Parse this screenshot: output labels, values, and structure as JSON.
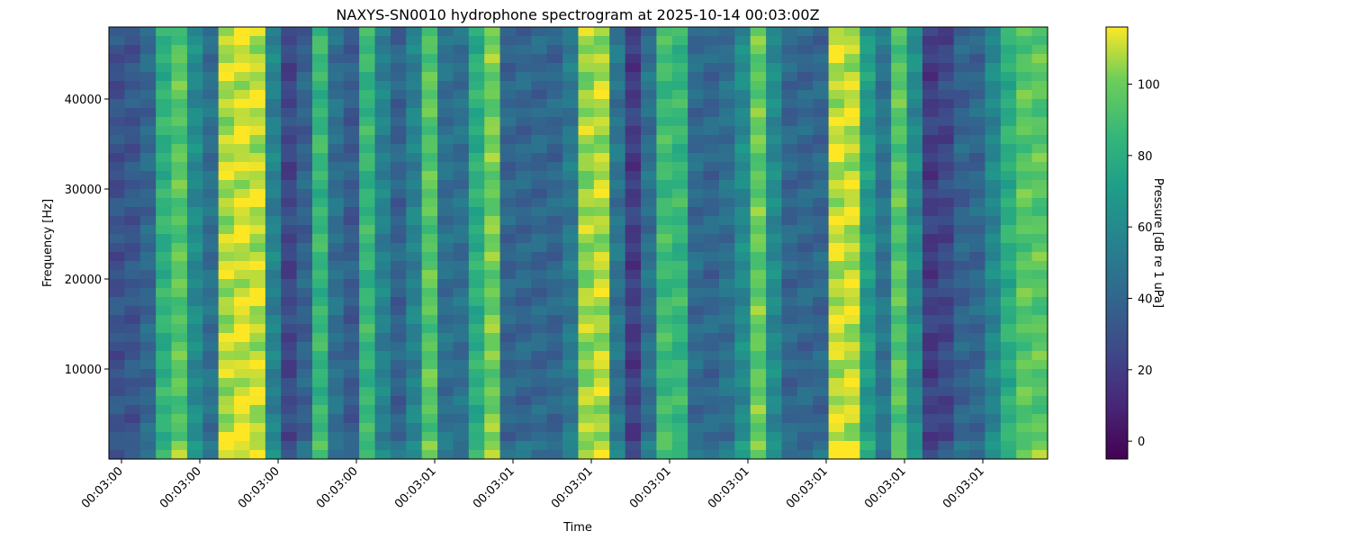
{
  "chart_data": {
    "type": "heatmap",
    "title": "NAXYS-SN0010 hydrophone spectrogram at 2025-10-14 00:03:00Z",
    "xlabel": "Time",
    "ylabel": "Frequency [Hz]",
    "colorbar_label": "Pressure [dB re 1 uPa]",
    "colormap": "viridis",
    "ylim": [
      0,
      48000
    ],
    "clim": [
      -5,
      116
    ],
    "x_tick_labels": [
      "00:03:00",
      "00:03:00",
      "00:03:00",
      "00:03:00",
      "00:03:01",
      "00:03:01",
      "00:03:01",
      "00:03:01",
      "00:03:01",
      "00:03:01",
      "00:03:01",
      "00:03:01"
    ],
    "y_ticks": [
      10000,
      20000,
      30000,
      40000
    ],
    "colorbar_ticks": [
      0,
      20,
      40,
      60,
      80,
      100
    ],
    "time_bands_db": [
      30,
      32,
      40,
      82,
      95,
      60,
      45,
      108,
      112,
      110,
      55,
      25,
      38,
      85,
      45,
      35,
      85,
      55,
      38,
      55,
      95,
      45,
      45,
      80,
      100,
      40,
      40,
      40,
      40,
      50,
      105,
      108,
      48,
      20,
      45,
      88,
      85,
      42,
      40,
      45,
      60,
      98,
      60,
      40,
      40,
      40,
      110,
      110,
      70,
      48,
      95,
      60,
      20,
      25,
      38,
      40,
      58,
      80,
      95,
      95
    ]
  }
}
